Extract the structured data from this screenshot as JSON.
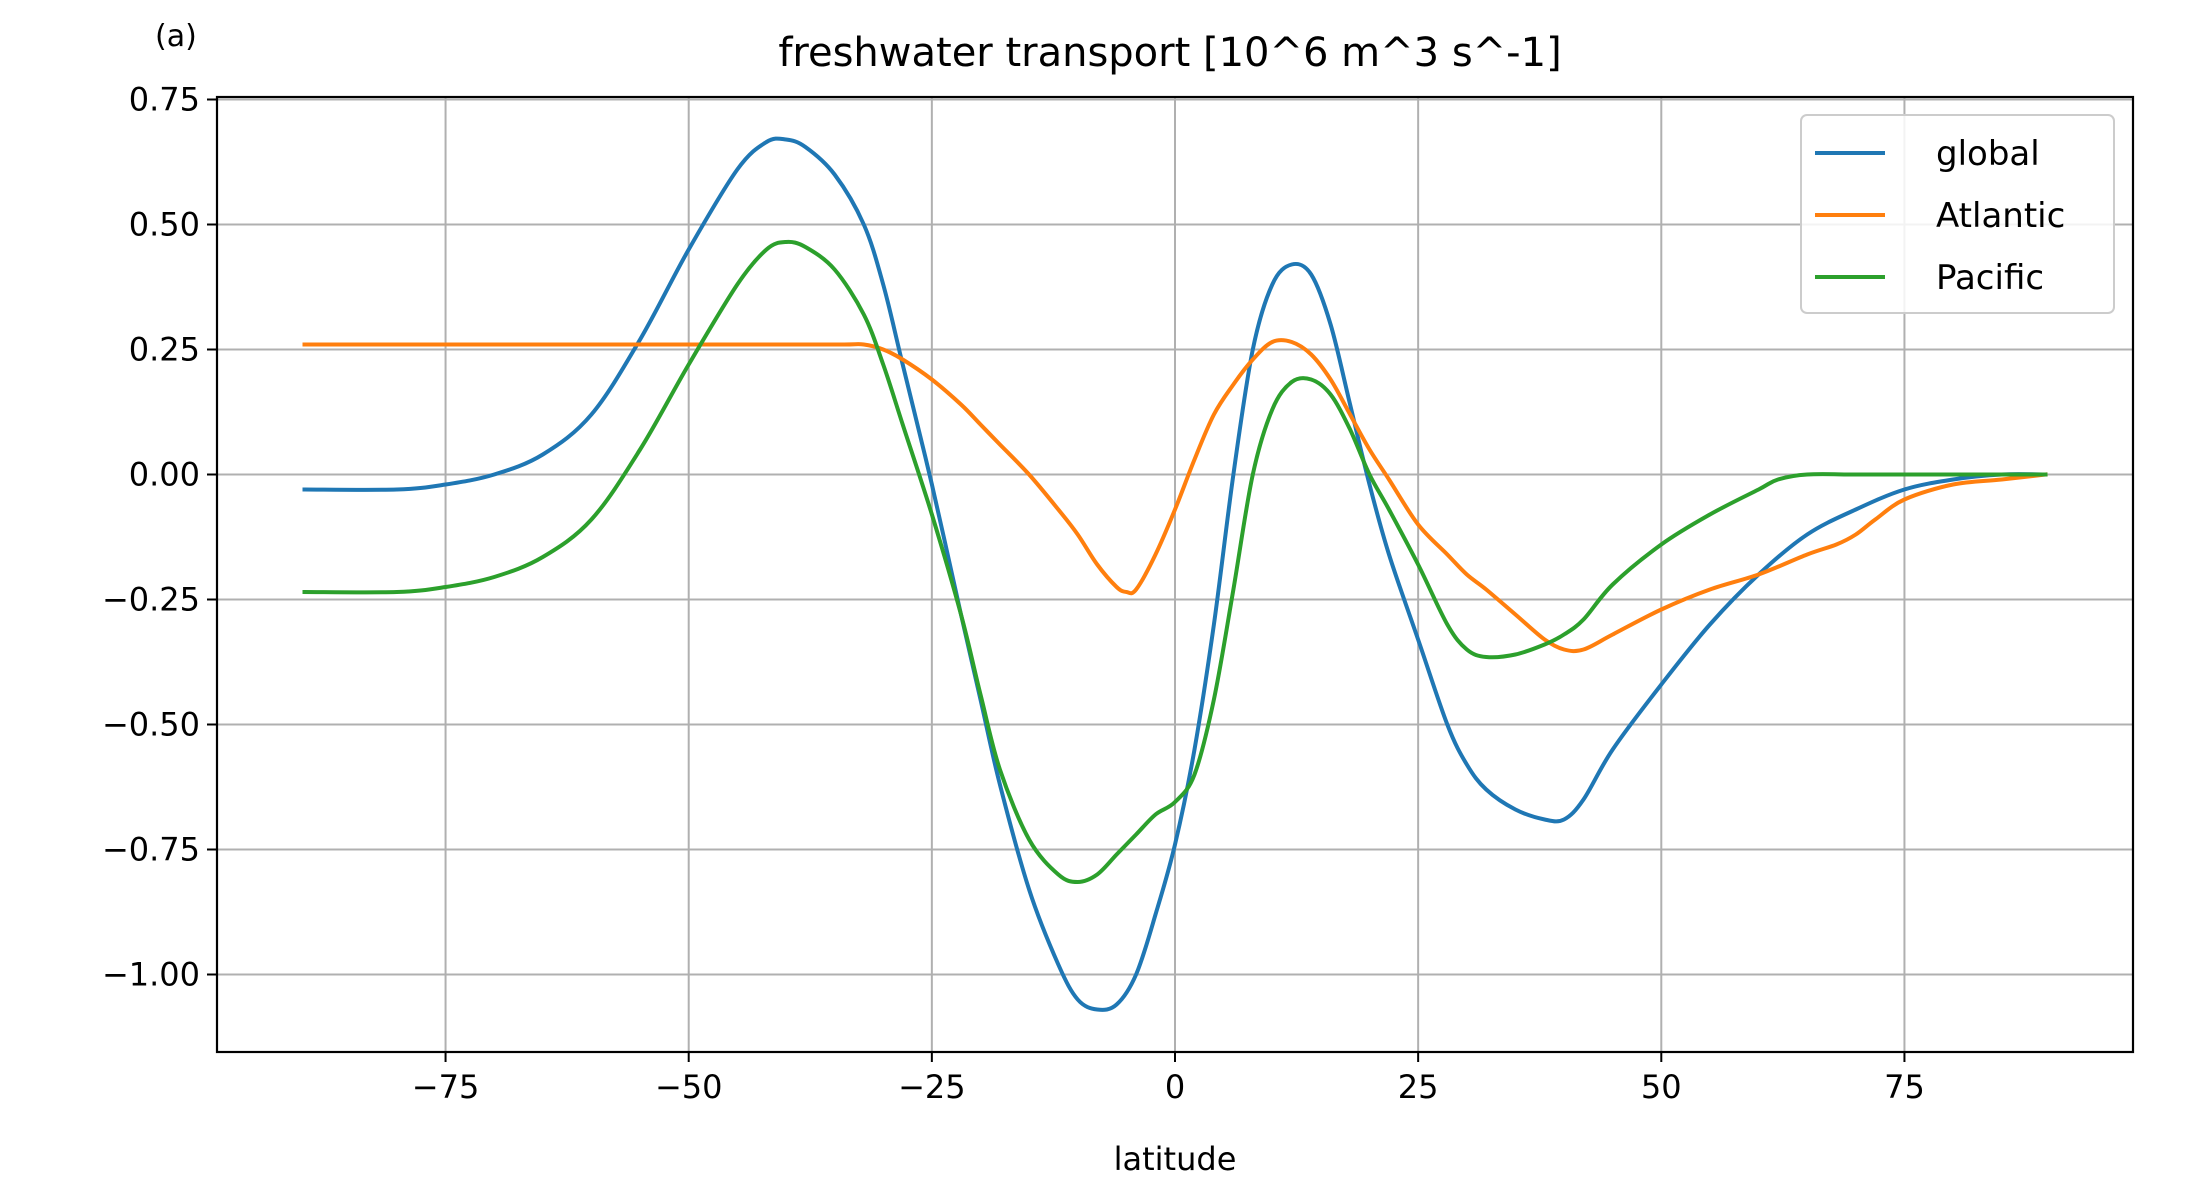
{
  "panel_label": "(a)",
  "chart_data": {
    "type": "line",
    "title": "freshwater transport [10^6 m^3 s^-1]",
    "xlabel": "latitude",
    "ylabel": "",
    "xlim": [
      -98.5,
      98.5
    ],
    "ylim": [
      -1.155,
      0.755
    ],
    "xticks": [
      -75,
      -50,
      -25,
      0,
      25,
      50,
      75
    ],
    "xtick_labels": [
      "−75",
      "−50",
      "−25",
      "0",
      "25",
      "50",
      "75"
    ],
    "yticks": [
      0.75,
      0.5,
      0.25,
      0.0,
      -0.25,
      -0.5,
      -0.75,
      -1.0
    ],
    "ytick_labels": [
      "0.75",
      "0.50",
      "0.25",
      "0.00",
      "−0.25",
      "−0.50",
      "−0.75",
      "−1.00"
    ],
    "grid": true,
    "legend_position": "top-right",
    "series": [
      {
        "name": "global",
        "color": "#1f77b4",
        "x": [
          -89.5,
          -80,
          -75,
          -70,
          -65,
          -60,
          -55,
          -50,
          -45,
          -42,
          -40,
          -38,
          -35,
          -32,
          -30,
          -28,
          -25,
          -22,
          -20,
          -18,
          -15,
          -12,
          -10,
          -8,
          -6,
          -4,
          -2,
          0,
          2,
          4,
          6,
          8,
          10,
          12,
          14,
          16,
          18,
          20,
          22,
          25,
          28,
          30,
          32,
          35,
          38,
          40,
          42,
          45,
          50,
          55,
          60,
          65,
          70,
          75,
          80,
          85,
          89.5
        ],
        "y": [
          -0.03,
          -0.03,
          -0.02,
          0.0,
          0.04,
          0.12,
          0.27,
          0.45,
          0.61,
          0.665,
          0.67,
          0.655,
          0.6,
          0.5,
          0.38,
          0.22,
          -0.02,
          -0.28,
          -0.45,
          -0.62,
          -0.83,
          -0.98,
          -1.05,
          -1.07,
          -1.06,
          -1.0,
          -0.88,
          -0.74,
          -0.55,
          -0.3,
          0.0,
          0.25,
          0.38,
          0.42,
          0.4,
          0.3,
          0.14,
          -0.02,
          -0.16,
          -0.33,
          -0.5,
          -0.58,
          -0.63,
          -0.67,
          -0.69,
          -0.69,
          -0.65,
          -0.55,
          -0.42,
          -0.3,
          -0.2,
          -0.12,
          -0.07,
          -0.03,
          -0.01,
          0.0,
          0.0
        ]
      },
      {
        "name": "Atlantic",
        "color": "#ff7f0e",
        "x": [
          -89.5,
          -80,
          -70,
          -60,
          -50,
          -40,
          -34,
          -32,
          -30,
          -28,
          -25,
          -22,
          -20,
          -18,
          -15,
          -12,
          -10,
          -8,
          -6,
          -5,
          -4,
          -2,
          0,
          2,
          4,
          6,
          8,
          10,
          12,
          14,
          16,
          18,
          20,
          22,
          25,
          28,
          30,
          32,
          35,
          38,
          40,
          42,
          45,
          50,
          55,
          60,
          65,
          68,
          70,
          72,
          75,
          80,
          85,
          89.5
        ],
        "y": [
          0.26,
          0.26,
          0.26,
          0.26,
          0.26,
          0.26,
          0.26,
          0.26,
          0.25,
          0.23,
          0.19,
          0.14,
          0.1,
          0.06,
          0.0,
          -0.07,
          -0.12,
          -0.18,
          -0.225,
          -0.235,
          -0.23,
          -0.16,
          -0.07,
          0.03,
          0.12,
          0.18,
          0.23,
          0.265,
          0.265,
          0.24,
          0.19,
          0.12,
          0.05,
          -0.01,
          -0.1,
          -0.16,
          -0.2,
          -0.23,
          -0.28,
          -0.33,
          -0.35,
          -0.35,
          -0.32,
          -0.27,
          -0.23,
          -0.2,
          -0.16,
          -0.14,
          -0.12,
          -0.09,
          -0.05,
          -0.02,
          -0.01,
          0.0
        ]
      },
      {
        "name": "Pacific",
        "color": "#2ca02c",
        "x": [
          -89.5,
          -80,
          -75,
          -70,
          -65,
          -60,
          -55,
          -50,
          -45,
          -42,
          -40,
          -38,
          -35,
          -32,
          -30,
          -28,
          -25,
          -22,
          -20,
          -18,
          -15,
          -12,
          -10,
          -8,
          -6,
          -4,
          -2,
          0,
          2,
          4,
          6,
          8,
          10,
          12,
          14,
          16,
          18,
          20,
          22,
          25,
          28,
          30,
          32,
          35,
          38,
          40,
          42,
          45,
          50,
          55,
          60,
          62,
          65,
          70,
          75,
          80,
          85,
          89.5
        ],
        "y": [
          -0.235,
          -0.235,
          -0.225,
          -0.205,
          -0.165,
          -0.09,
          0.05,
          0.22,
          0.38,
          0.45,
          0.465,
          0.455,
          0.41,
          0.32,
          0.22,
          0.1,
          -0.08,
          -0.28,
          -0.44,
          -0.59,
          -0.73,
          -0.8,
          -0.815,
          -0.8,
          -0.76,
          -0.72,
          -0.68,
          -0.655,
          -0.6,
          -0.45,
          -0.23,
          0.0,
          0.13,
          0.185,
          0.19,
          0.16,
          0.09,
          0.0,
          -0.07,
          -0.18,
          -0.3,
          -0.35,
          -0.365,
          -0.36,
          -0.34,
          -0.32,
          -0.29,
          -0.22,
          -0.14,
          -0.08,
          -0.03,
          -0.01,
          0.0,
          0.0,
          0.0,
          0.0,
          0.0,
          0.0
        ]
      }
    ]
  }
}
